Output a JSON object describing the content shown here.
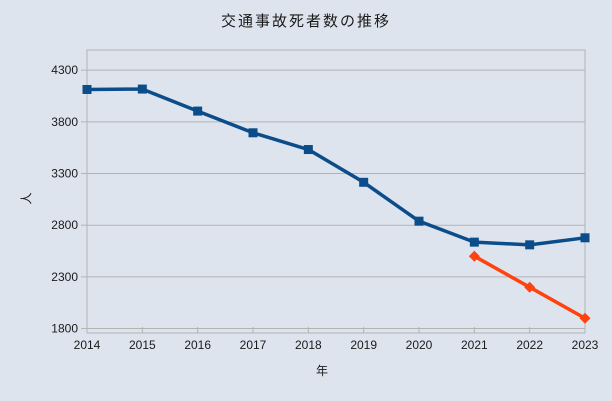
{
  "chart": {
    "title": "交通事故死者数の推移",
    "y_axis_title": "人",
    "x_axis_title": "年"
  },
  "chart_data": {
    "type": "line",
    "title": "交通事故死者数の推移",
    "xlabel": "年",
    "ylabel": "人",
    "categories": [
      2014,
      2015,
      2016,
      2017,
      2018,
      2019,
      2020,
      2021,
      2022,
      2023
    ],
    "y_ticks": [
      1800,
      2300,
      2800,
      3300,
      3800,
      4300
    ],
    "ylim": [
      1757,
      4495
    ],
    "grid": "horizontal-only",
    "legend": "none",
    "background": "#dee4ee",
    "gridline_color": "#b3b3b3",
    "text_color": "#1a1a1a",
    "series": [
      {
        "id": "series-1-blue-squares",
        "marker": "square",
        "color": "#0b4d8a",
        "x": [
          2014,
          2015,
          2016,
          2017,
          2018,
          2019,
          2020,
          2021,
          2022,
          2023
        ],
        "values": [
          4113,
          4117,
          3904,
          3694,
          3532,
          3215,
          2839,
          2636,
          2610,
          2678
        ]
      },
      {
        "id": "series-2-orange-diamonds",
        "marker": "diamond",
        "color": "#ff420e",
        "x": [
          2021,
          2022,
          2023
        ],
        "values": [
          2500,
          2200,
          1900
        ]
      }
    ]
  }
}
